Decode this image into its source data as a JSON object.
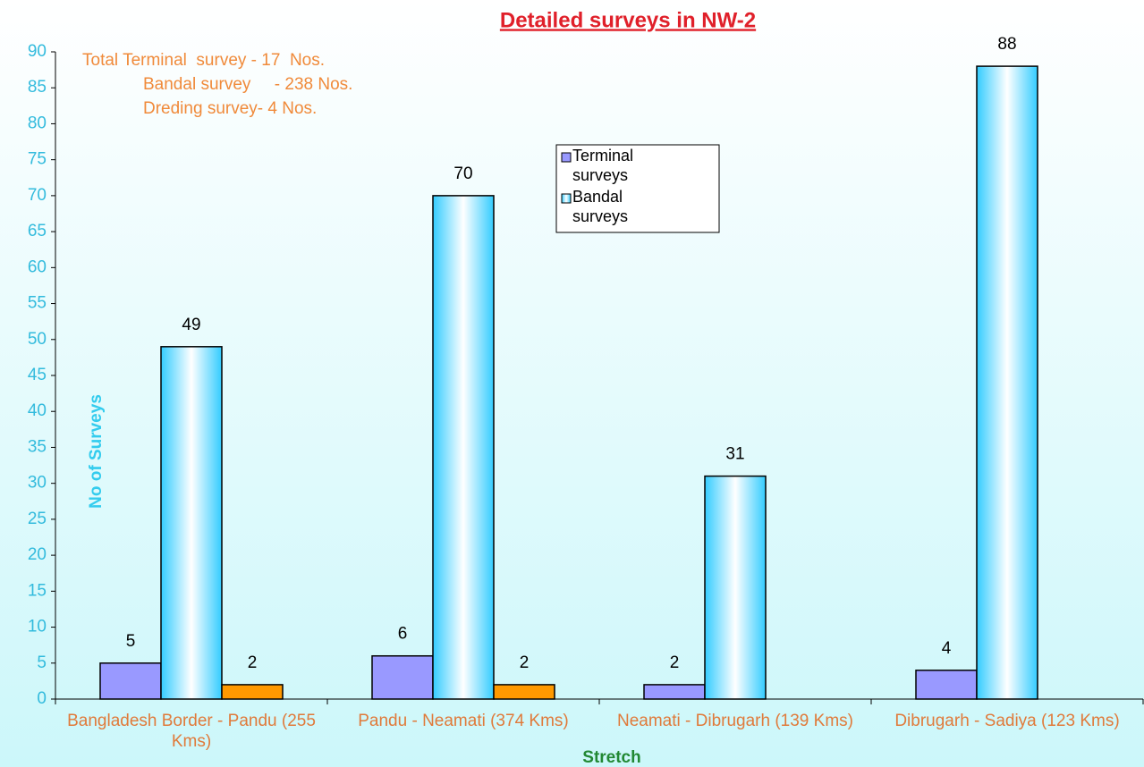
{
  "chart_data": {
    "type": "bar",
    "title": "Detailed surveys in NW-2",
    "annotations": [
      "Total Terminal  survey - 17  Nos.",
      "Bandal survey     - 238 Nos.",
      "Dreding survey- 4 Nos."
    ],
    "y_label": "No of Surveys",
    "x_label": "Stretch",
    "categories": [
      "Bangladesh Border - Pandu (255 Kms)",
      "Pandu - Neamati (374 Kms)",
      "Neamati - Dibrugarh (139 Kms)",
      "Dibrugarh - Sadiya (123 Kms)"
    ],
    "series": [
      {
        "name": "Terminal surveys",
        "color": "#9999ff",
        "values": [
          5,
          6,
          2,
          4
        ]
      },
      {
        "name": "Bandal surveys",
        "color": "#33ccff",
        "values": [
          49,
          70,
          31,
          88
        ]
      },
      {
        "color": "#ff9900",
        "values": [
          2,
          2,
          null,
          null
        ]
      }
    ],
    "ylim": [
      0,
      90
    ],
    "yticks": [
      0,
      5,
      10,
      15,
      20,
      25,
      30,
      35,
      40,
      45,
      50,
      55,
      60,
      65,
      70,
      75,
      80,
      85,
      90
    ],
    "legend": "top-center"
  }
}
